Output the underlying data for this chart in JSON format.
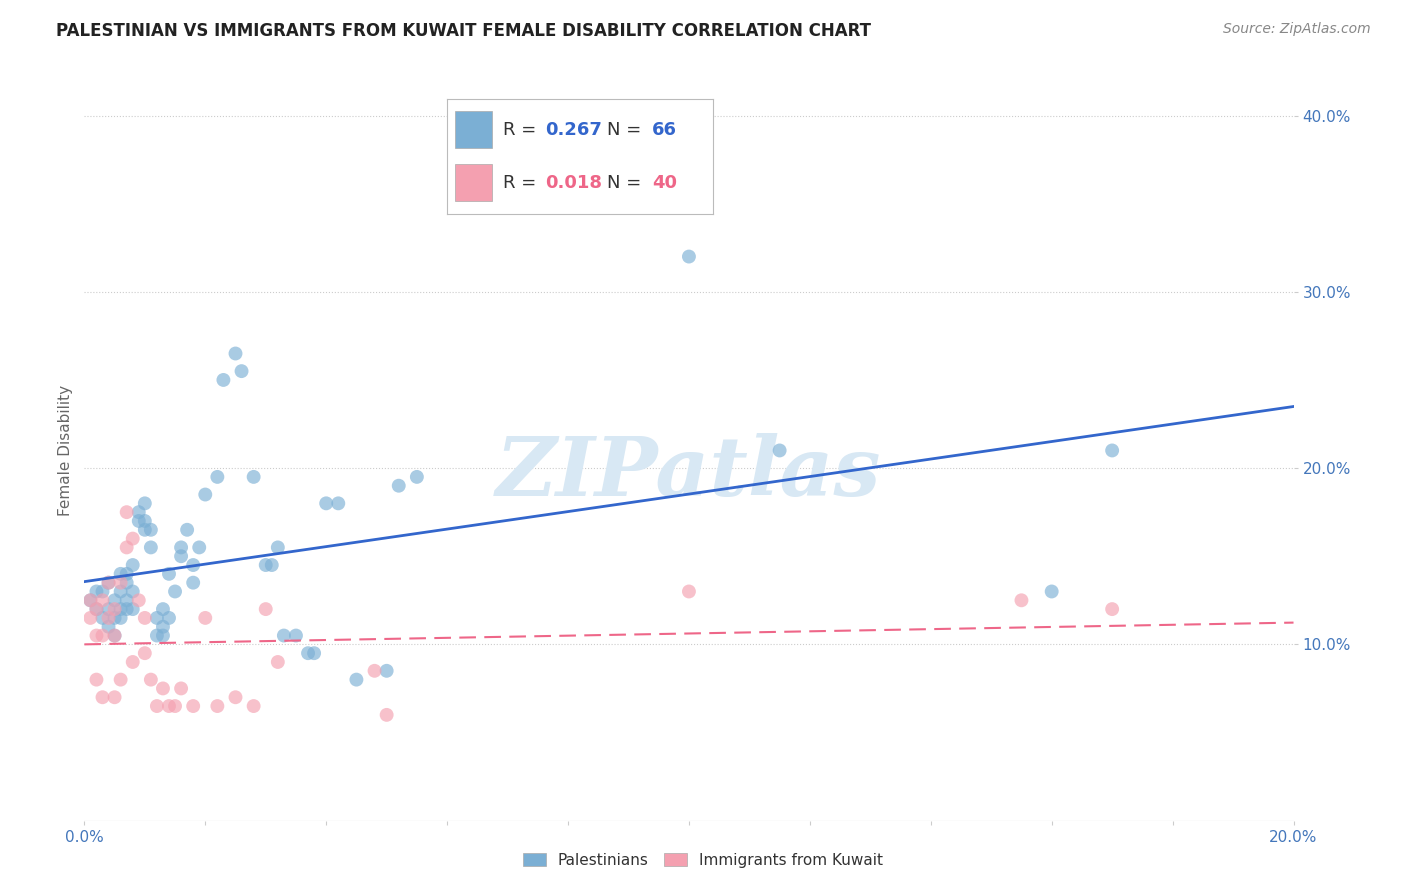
{
  "title": "PALESTINIAN VS IMMIGRANTS FROM KUWAIT FEMALE DISABILITY CORRELATION CHART",
  "source": "Source: ZipAtlas.com",
  "ylabel": "Female Disability",
  "xlim": [
    0.0,
    0.2
  ],
  "ylim": [
    0.0,
    0.42
  ],
  "xticks": [
    0.0,
    0.02,
    0.04,
    0.06,
    0.08,
    0.1,
    0.12,
    0.14,
    0.16,
    0.18,
    0.2
  ],
  "xtick_labels": [
    "0.0%",
    "",
    "",
    "",
    "",
    "",
    "",
    "",
    "",
    "",
    "20.0%"
  ],
  "yticks": [
    0.1,
    0.2,
    0.3,
    0.4
  ],
  "ytick_labels": [
    "10.0%",
    "20.0%",
    "30.0%",
    "40.0%"
  ],
  "palestinian_R": 0.267,
  "palestinian_N": 66,
  "kuwait_R": 0.018,
  "kuwait_N": 40,
  "blue_color": "#7BAFD4",
  "pink_color": "#F4A0B0",
  "line_blue": "#3366CC",
  "line_pink": "#EE6688",
  "axis_color": "#4477BB",
  "title_color": "#222222",
  "source_color": "#888888",
  "ylabel_color": "#666666",
  "watermark": "ZIPatlas",
  "watermark_color": "#D8E8F4",
  "palestinian_x": [
    0.001,
    0.002,
    0.002,
    0.003,
    0.003,
    0.004,
    0.004,
    0.004,
    0.005,
    0.005,
    0.005,
    0.006,
    0.006,
    0.006,
    0.006,
    0.007,
    0.007,
    0.007,
    0.007,
    0.008,
    0.008,
    0.008,
    0.009,
    0.009,
    0.01,
    0.01,
    0.01,
    0.011,
    0.011,
    0.012,
    0.012,
    0.013,
    0.013,
    0.013,
    0.014,
    0.014,
    0.015,
    0.016,
    0.016,
    0.017,
    0.018,
    0.018,
    0.019,
    0.02,
    0.022,
    0.023,
    0.025,
    0.026,
    0.028,
    0.03,
    0.031,
    0.032,
    0.033,
    0.035,
    0.037,
    0.038,
    0.04,
    0.042,
    0.045,
    0.05,
    0.052,
    0.055,
    0.1,
    0.115,
    0.16,
    0.17
  ],
  "palestinian_y": [
    0.125,
    0.13,
    0.12,
    0.115,
    0.13,
    0.12,
    0.11,
    0.135,
    0.115,
    0.125,
    0.105,
    0.13,
    0.12,
    0.14,
    0.115,
    0.135,
    0.125,
    0.14,
    0.12,
    0.145,
    0.13,
    0.12,
    0.175,
    0.17,
    0.165,
    0.18,
    0.17,
    0.155,
    0.165,
    0.105,
    0.115,
    0.11,
    0.105,
    0.12,
    0.115,
    0.14,
    0.13,
    0.155,
    0.15,
    0.165,
    0.145,
    0.135,
    0.155,
    0.185,
    0.195,
    0.25,
    0.265,
    0.255,
    0.195,
    0.145,
    0.145,
    0.155,
    0.105,
    0.105,
    0.095,
    0.095,
    0.18,
    0.18,
    0.08,
    0.085,
    0.19,
    0.195,
    0.32,
    0.21,
    0.13,
    0.21
  ],
  "kuwait_x": [
    0.001,
    0.001,
    0.002,
    0.002,
    0.002,
    0.003,
    0.003,
    0.003,
    0.004,
    0.004,
    0.005,
    0.005,
    0.005,
    0.006,
    0.006,
    0.007,
    0.007,
    0.008,
    0.008,
    0.009,
    0.01,
    0.01,
    0.011,
    0.012,
    0.013,
    0.014,
    0.015,
    0.016,
    0.018,
    0.02,
    0.022,
    0.025,
    0.028,
    0.03,
    0.032,
    0.048,
    0.05,
    0.1,
    0.155,
    0.17
  ],
  "kuwait_y": [
    0.125,
    0.115,
    0.12,
    0.105,
    0.08,
    0.125,
    0.105,
    0.07,
    0.135,
    0.115,
    0.12,
    0.105,
    0.07,
    0.135,
    0.08,
    0.175,
    0.155,
    0.16,
    0.09,
    0.125,
    0.115,
    0.095,
    0.08,
    0.065,
    0.075,
    0.065,
    0.065,
    0.075,
    0.065,
    0.115,
    0.065,
    0.07,
    0.065,
    0.12,
    0.09,
    0.085,
    0.06,
    0.13,
    0.125,
    0.12
  ],
  "bottom_legend_labels": [
    "Palestinians",
    "Immigrants from Kuwait"
  ],
  "grid_color": "#CCCCCC",
  "legend_R1": "R = 0.267",
  "legend_N1": "N = 66",
  "legend_R2": "R = 0.018",
  "legend_N2": "N = 40"
}
